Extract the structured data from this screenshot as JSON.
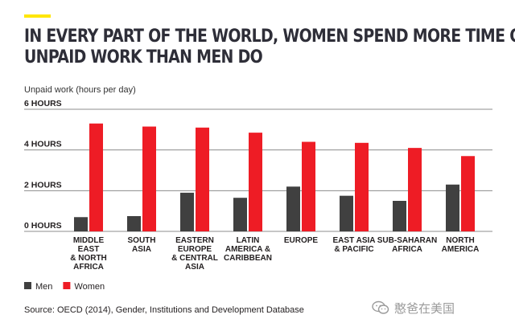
{
  "accent_color": "#ffe600",
  "header": {
    "title_line1": "IN EVERY PART OF THE WORLD, WOMEN SPEND MORE TIME ON",
    "title_line2": "UNPAID WORK THAN MEN DO"
  },
  "chart_data": {
    "type": "bar",
    "ylabel": "Unpaid work (hours per day)",
    "ylim": [
      0,
      6
    ],
    "yticks": [
      0,
      2,
      4,
      6
    ],
    "ytick_labels": [
      "0 HOURS",
      "2 HOURS",
      "4 HOURS",
      "6 HOURS"
    ],
    "grid": true,
    "legend_position": "bottom-left",
    "categories": [
      [
        "MIDDLE",
        "EAST",
        "& NORTH",
        "AFRICA"
      ],
      [
        "SOUTH",
        "ASIA"
      ],
      [
        "EASTERN",
        "EUROPE",
        "& CENTRAL",
        "ASIA"
      ],
      [
        "LATIN",
        "AMERICA &",
        "CARIBBEAN"
      ],
      [
        "EUROPE"
      ],
      [
        "EAST ASIA",
        "& PACIFIC"
      ],
      [
        "SUB-SAHARAN",
        "AFRICA"
      ],
      [
        "NORTH",
        "AMERICA"
      ]
    ],
    "series": [
      {
        "name": "Men",
        "color": "#404040",
        "values": [
          0.7,
          0.75,
          1.9,
          1.65,
          2.2,
          1.75,
          1.5,
          2.3
        ]
      },
      {
        "name": "Women",
        "color": "#ee1c25",
        "values": [
          5.3,
          5.15,
          5.1,
          4.85,
          4.4,
          4.35,
          4.1,
          3.7
        ]
      }
    ]
  },
  "footer": {
    "source": "Source: OECD (2014), Gender, Institutions and Development Database",
    "watermark_text": "憨爸在美国",
    "watermark_icon": "wechat-icon"
  }
}
